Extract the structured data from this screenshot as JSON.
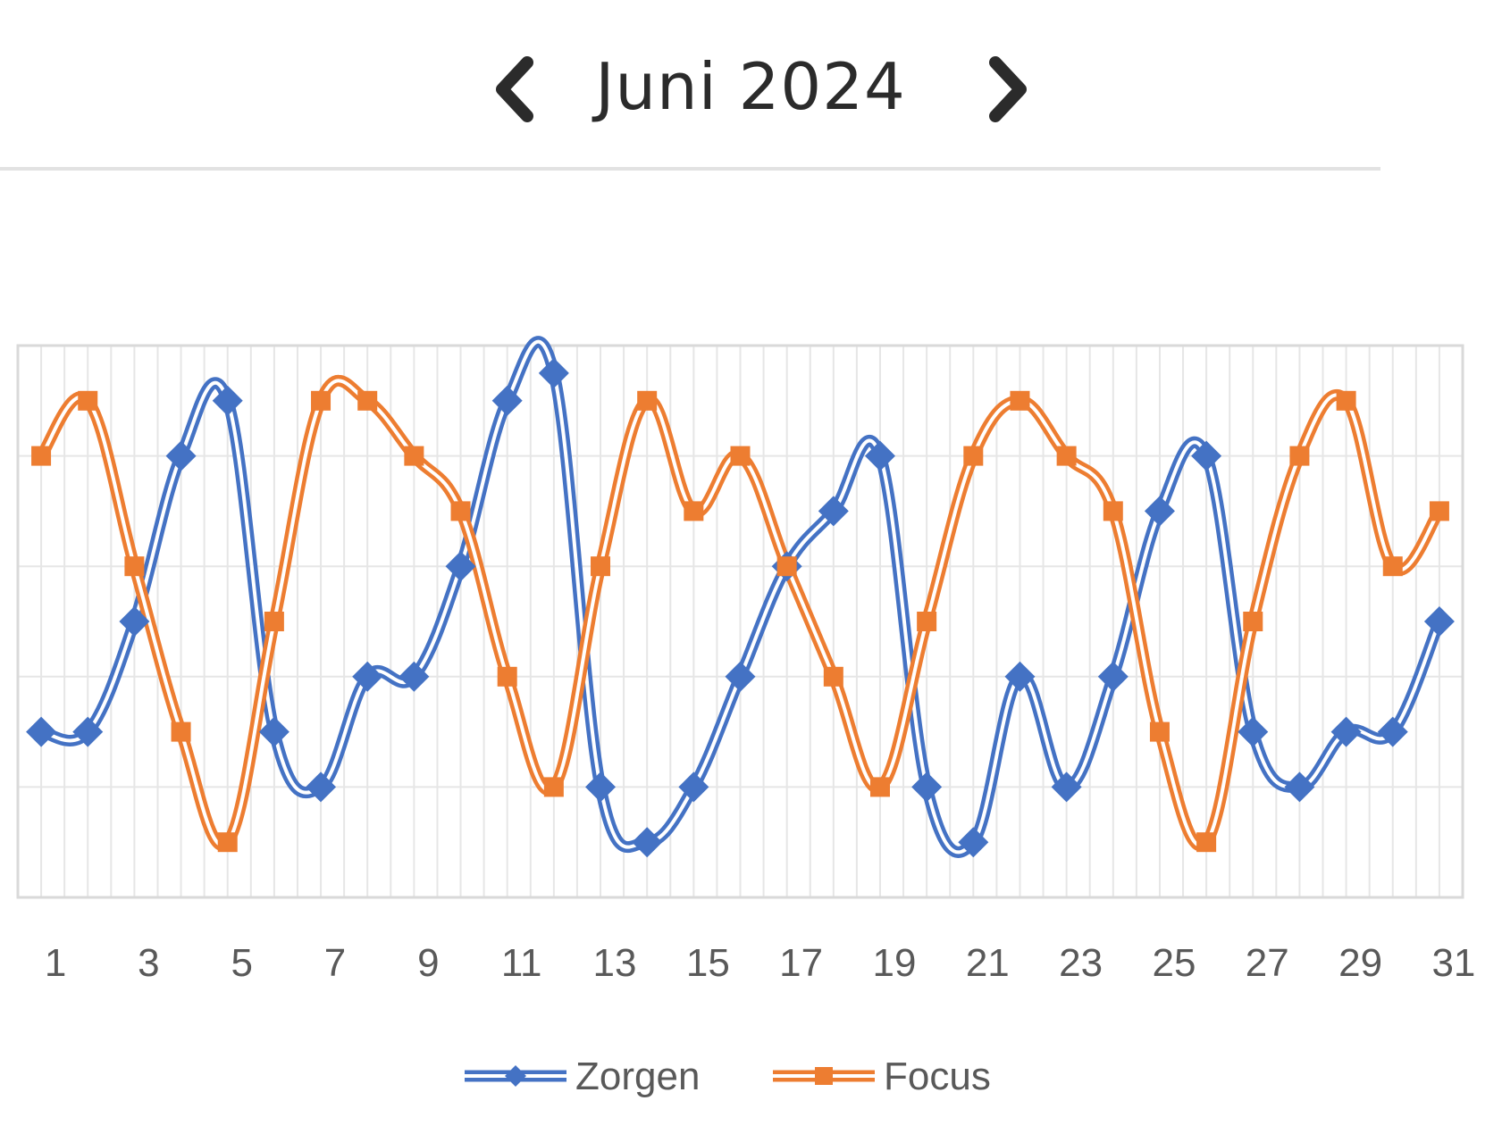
{
  "header": {
    "title": "Juni 2024",
    "prev_icon": "chevron-left-icon",
    "next_icon": "chevron-right-icon"
  },
  "chart_data": {
    "type": "line",
    "title": "",
    "xlabel": "",
    "ylabel": "",
    "x": [
      1,
      2,
      3,
      4,
      5,
      6,
      7,
      8,
      9,
      10,
      11,
      12,
      13,
      14,
      15,
      16,
      17,
      18,
      19,
      20,
      21,
      22,
      23,
      24,
      25,
      26,
      27,
      28,
      29,
      30,
      31
    ],
    "x_tick_labels": [
      "1",
      "3",
      "5",
      "7",
      "9",
      "11",
      "13",
      "15",
      "17",
      "19",
      "21",
      "23",
      "25",
      "27",
      "29",
      "31"
    ],
    "ylim": [
      0,
      10
    ],
    "grid": true,
    "legend_position": "bottom",
    "series": [
      {
        "name": "Zorgen",
        "color": "#4472c4",
        "marker": "diamond",
        "values": [
          3,
          3,
          5,
          8,
          9,
          3,
          2,
          4,
          4,
          6,
          9,
          9.5,
          2,
          1,
          2,
          4,
          6,
          7,
          8,
          2,
          1,
          4,
          2,
          4,
          7,
          8,
          3,
          2,
          3,
          3,
          5
        ]
      },
      {
        "name": "Focus",
        "color": "#ed7d31",
        "marker": "square",
        "values": [
          8,
          9,
          6,
          3,
          1,
          5,
          9,
          9,
          8,
          7,
          4,
          2,
          6,
          9,
          7,
          8,
          6,
          4,
          2,
          5,
          8,
          9,
          8,
          7,
          3,
          1,
          5,
          8,
          9,
          6,
          7
        ]
      }
    ]
  }
}
